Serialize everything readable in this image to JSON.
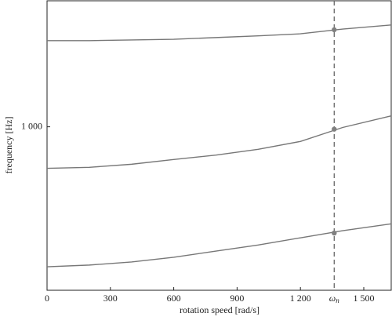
{
  "chart_data": {
    "type": "line",
    "xlabel": "rotation speed [rad/s]",
    "ylabel": "frequency [Hz]",
    "x": [
      0,
      200,
      400,
      600,
      800,
      1000,
      1200,
      1400,
      1630
    ],
    "series": [
      {
        "color": "#777777",
        "values": [
          1253,
          1253,
          1255,
          1257,
          1262,
          1267,
          1273,
          1287,
          1299
        ]
      },
      {
        "color": "#777777",
        "values": [
          878,
          881,
          890,
          904,
          917,
          934,
          957,
          998,
          1032
        ]
      },
      {
        "color": "#777777",
        "values": [
          589,
          594,
          603,
          617,
          635,
          653,
          674,
          695,
          715
        ]
      }
    ],
    "markers": {
      "x": 1360,
      "values": [
        1285,
        993,
        688
      ],
      "color": "#808080"
    },
    "vline": {
      "x": 1360,
      "label": "ω",
      "label_sub": "n",
      "color": "#666666"
    },
    "xlim": [
      0,
      1630
    ],
    "ylim": [
      520,
      1370
    ],
    "xticks": [
      0,
      300,
      600,
      900,
      {
        "value": 1200,
        "label": "1 200"
      },
      {
        "value": 1500,
        "label": "1 500"
      }
    ],
    "yticks": [
      {
        "value": 1000,
        "label": "1 000"
      }
    ]
  }
}
